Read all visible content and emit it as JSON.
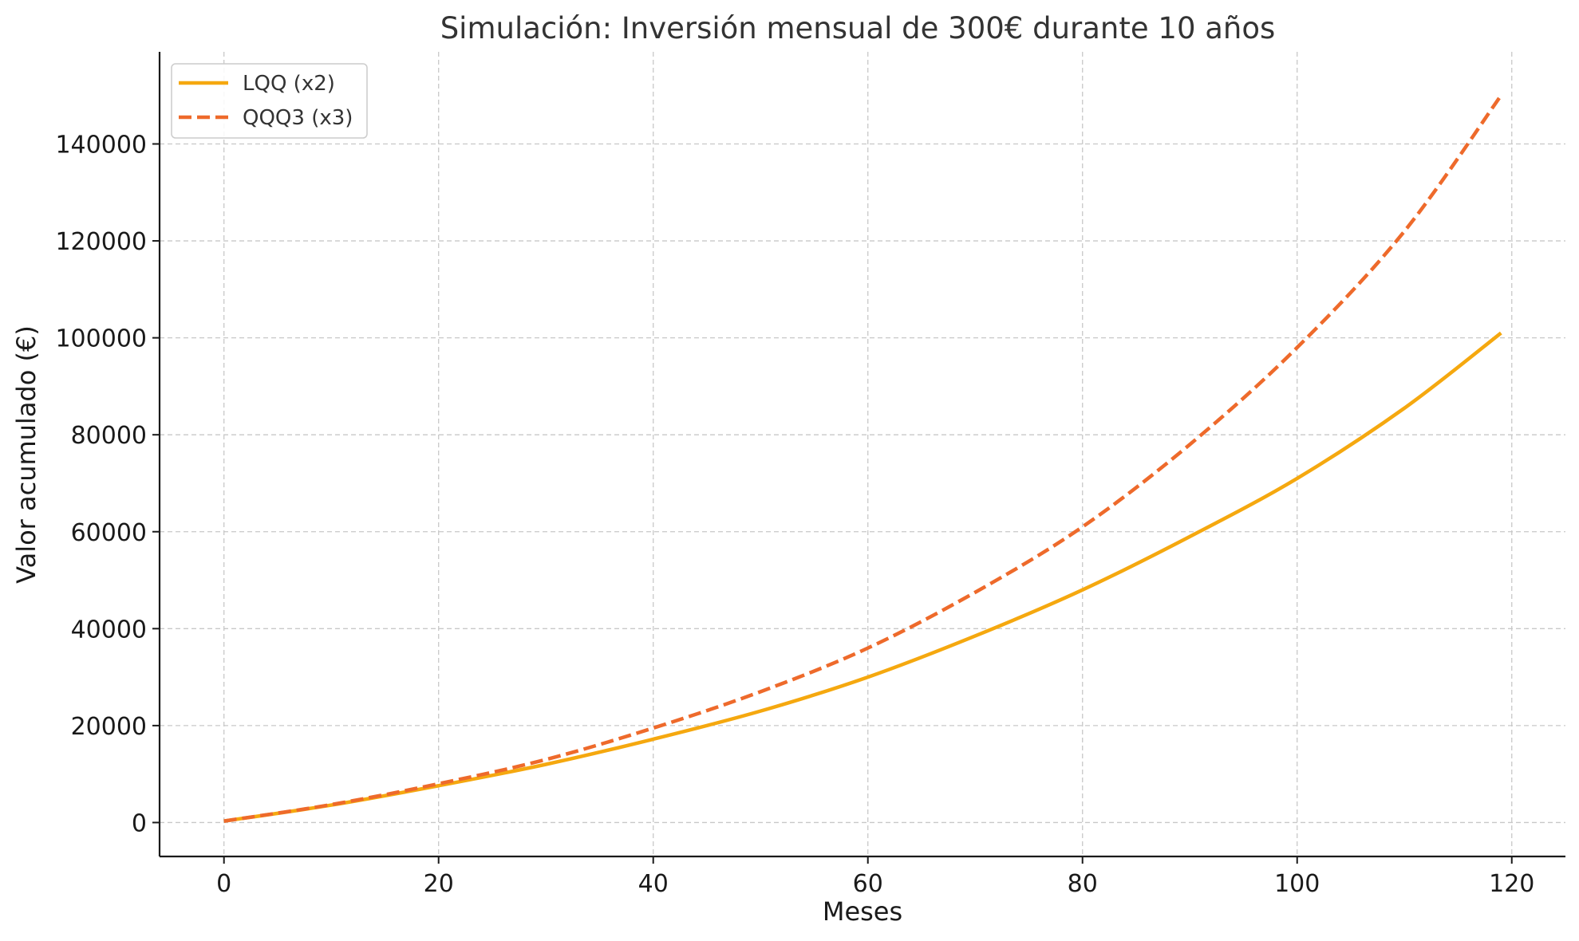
{
  "chart_data": {
    "type": "line",
    "title": "Simulación: Inversión mensual de 300€ durante 10 años",
    "xlabel": "Meses",
    "ylabel": "Valor acumulado (€)",
    "xlim": [
      -6,
      125
    ],
    "ylim": [
      -7000,
      159000
    ],
    "x_ticks": [
      0,
      20,
      40,
      60,
      80,
      100,
      120
    ],
    "y_ticks": [
      0,
      20000,
      40000,
      60000,
      80000,
      100000,
      120000,
      140000
    ],
    "grid": true,
    "legend_position": "top-left",
    "series": [
      {
        "name": "LQQ (x2)",
        "color": "#f5a80f",
        "style": "solid",
        "x": [
          0,
          10,
          20,
          30,
          40,
          50,
          60,
          70,
          80,
          90,
          100,
          110,
          119
        ],
        "values": [
          300,
          3600,
          7600,
          12000,
          17200,
          23000,
          30000,
          38500,
          48000,
          59000,
          71000,
          85500,
          101000
        ]
      },
      {
        "name": "QQQ3 (x3)",
        "color": "#ee6a2b",
        "style": "dashed",
        "x": [
          0,
          10,
          20,
          30,
          40,
          50,
          60,
          70,
          80,
          90,
          100,
          110,
          119
        ],
        "values": [
          300,
          3700,
          8000,
          13000,
          19500,
          27000,
          36000,
          47500,
          61000,
          78000,
          98000,
          122000,
          150000
        ]
      }
    ]
  }
}
